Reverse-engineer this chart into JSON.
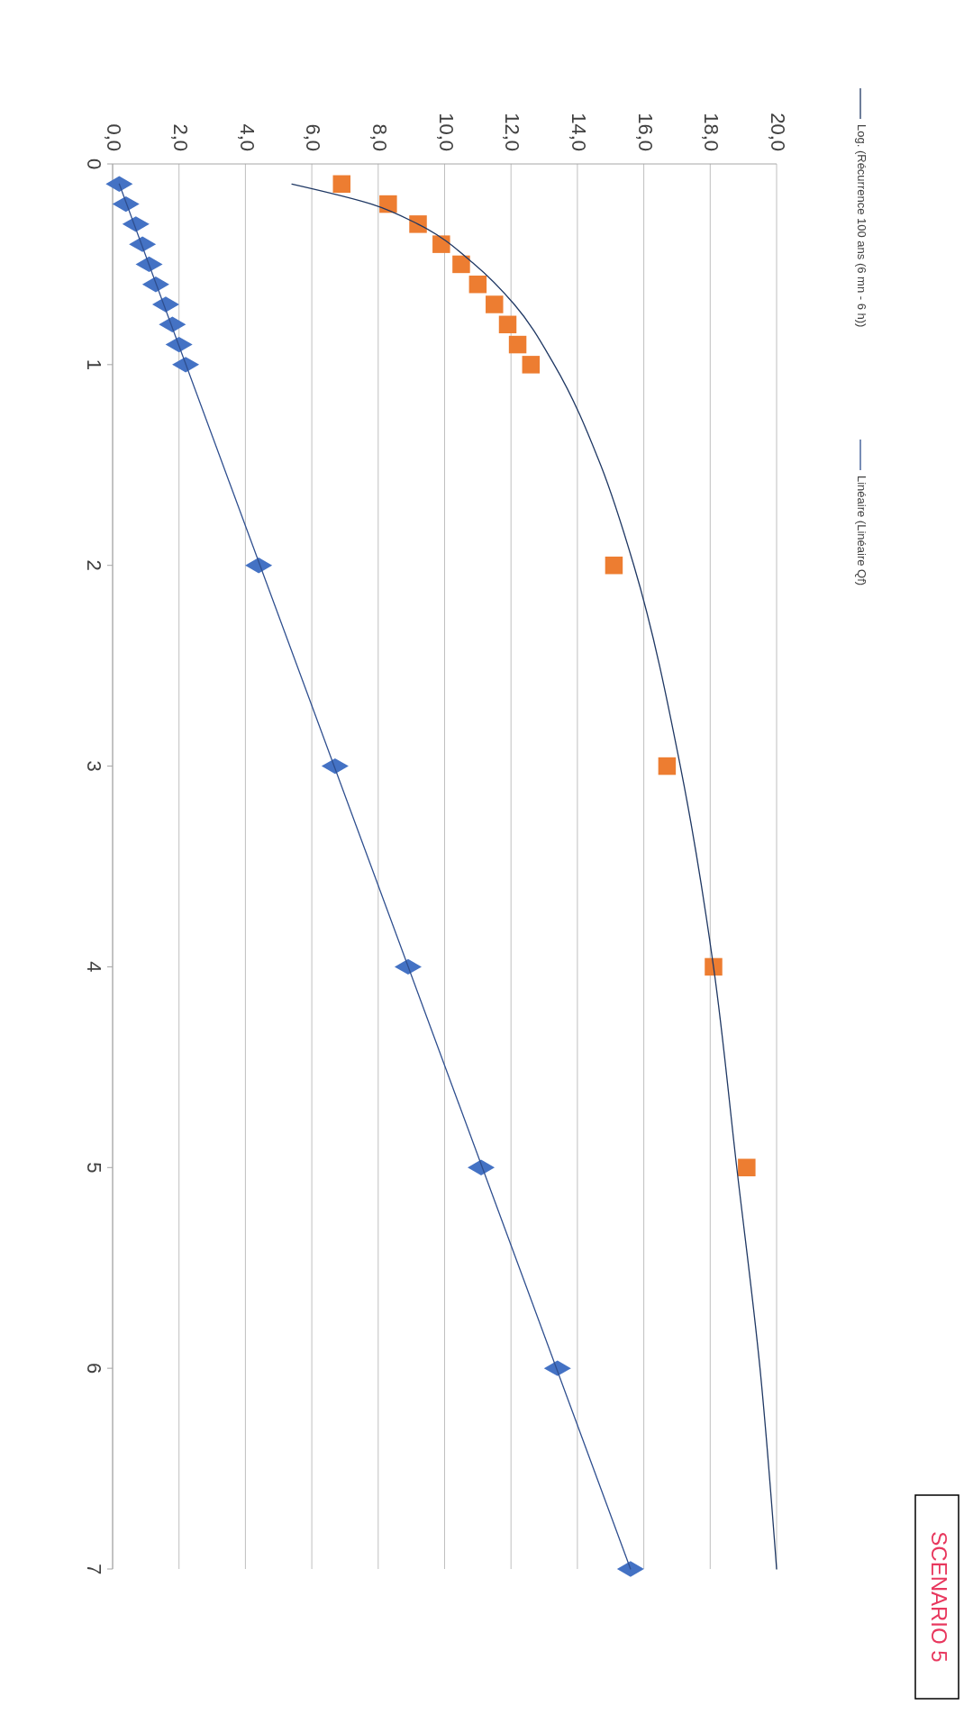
{
  "chart_data": {
    "type": "scatter",
    "xlim": [
      0,
      20
    ],
    "xticks": [
      {
        "value": 0,
        "label": "0,0"
      },
      {
        "value": 2,
        "label": "2,0"
      },
      {
        "value": 4,
        "label": "4,0"
      },
      {
        "value": 6,
        "label": "6,0"
      },
      {
        "value": 8,
        "label": "8,0"
      },
      {
        "value": 10,
        "label": "10,0"
      },
      {
        "value": 12,
        "label": "12,0"
      },
      {
        "value": 14,
        "label": "14,0"
      },
      {
        "value": 16,
        "label": "16,0"
      },
      {
        "value": 18,
        "label": "18,0"
      },
      {
        "value": 20,
        "label": "20,0"
      }
    ],
    "ylim": [
      7,
      0
    ],
    "yticks": [
      0,
      1,
      2,
      3,
      4,
      5,
      6,
      7
    ],
    "grid": "x",
    "legend": "right",
    "annotations": [
      "SCENARIO 5"
    ],
    "series": [
      {
        "type": "scatter",
        "marker": "diamond",
        "color": "#4472c4",
        "values": [
          0.1,
          0.2,
          0.3,
          0.4,
          0.5,
          0.6,
          0.7,
          0.8,
          0.9,
          1,
          2,
          3,
          4,
          5,
          6,
          7
        ],
        "x": [
          0.2,
          0.4,
          0.7,
          0.9,
          1.1,
          1.3,
          1.6,
          1.8,
          2.0,
          2.2,
          4.4,
          6.7,
          8.9,
          11.1,
          13.4,
          15.6
        ]
      },
      {
        "type": "scatter",
        "marker": "square",
        "color": "#ed7d31",
        "values": [
          0.1,
          0.2,
          0.3,
          0.4,
          0.5,
          0.6,
          0.7,
          0.8,
          0.9,
          1,
          2,
          3,
          4,
          5
        ],
        "x": [
          6.9,
          8.3,
          9.2,
          9.9,
          10.5,
          11.0,
          11.5,
          11.9,
          12.2,
          12.6,
          15.1,
          16.7,
          18.1,
          19.1
        ]
      },
      {
        "type": "line",
        "marker": "none",
        "name": "Log. (Récurrence 100 ans (6 mn - 6 h))",
        "color": "#1f3864",
        "values": [
          0.1,
          0.2,
          0.3,
          0.5,
          0.7,
          1,
          1.5,
          2,
          3,
          4,
          5,
          6,
          7
        ],
        "x": [
          5.4,
          7.8,
          9.2,
          10.9,
          12.1,
          13.3,
          14.7,
          15.7,
          17.1,
          18.1,
          18.8,
          19.5,
          20.0
        ]
      },
      {
        "type": "line",
        "marker": "none",
        "name": "Linéaire (Linéaire Qf)",
        "color": "#2f4f8f",
        "values": [
          0.1,
          7
        ],
        "x": [
          0.2,
          15.6
        ]
      }
    ]
  }
}
